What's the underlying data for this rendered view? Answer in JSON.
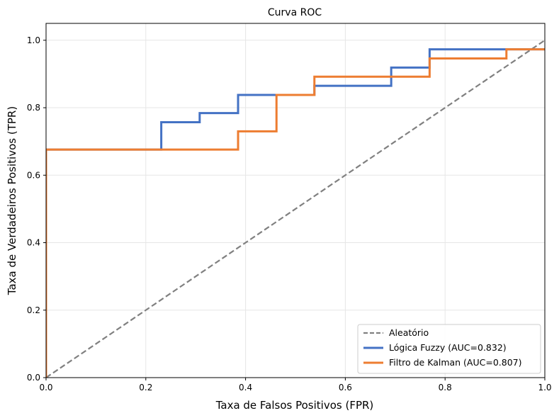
{
  "chart_data": {
    "type": "line",
    "title": "Curva ROC",
    "xlabel": "Taxa de Falsos Positivos (FPR)",
    "ylabel": "Taxa de Verdadeiros Positivos (TPR)",
    "xlim": [
      0,
      1
    ],
    "ylim": [
      0,
      1.05
    ],
    "xticks": [
      0,
      0.2,
      0.4,
      0.6,
      0.8,
      1.0
    ],
    "xtick_labels": [
      "0.0",
      "0.2",
      "0.4",
      "0.6",
      "0.8",
      "1.0"
    ],
    "yticks": [
      0,
      0.2,
      0.4,
      0.6,
      0.8,
      1.0
    ],
    "ytick_labels": [
      "0.0",
      "0.2",
      "0.4",
      "0.6",
      "0.8",
      "1.0"
    ],
    "grid": true,
    "legend_position": "bottom-right",
    "series": [
      {
        "name": "Aleatório",
        "style": "dashed",
        "color": "#808080",
        "x": [
          0,
          1
        ],
        "y": [
          0,
          1
        ]
      },
      {
        "name": "Lógica Fuzzy (AUC=0.832)",
        "style": "solid",
        "color": "#4472C4",
        "x": [
          0,
          0,
          0.231,
          0.231,
          0.308,
          0.308,
          0.385,
          0.385,
          0.538,
          0.538,
          0.692,
          0.692,
          0.769,
          0.769,
          1.0
        ],
        "y": [
          0,
          0.676,
          0.676,
          0.757,
          0.757,
          0.784,
          0.784,
          0.838,
          0.838,
          0.865,
          0.865,
          0.919,
          0.919,
          0.973,
          0.973
        ]
      },
      {
        "name": "Filtro de Kalman (AUC=0.807)",
        "style": "solid",
        "color": "#ED7D31",
        "x": [
          0,
          0,
          0.385,
          0.385,
          0.462,
          0.462,
          0.538,
          0.538,
          0.769,
          0.769,
          0.923,
          0.923,
          1.0
        ],
        "y": [
          0,
          0.676,
          0.676,
          0.73,
          0.73,
          0.838,
          0.838,
          0.892,
          0.892,
          0.946,
          0.946,
          0.973,
          0.973
        ]
      }
    ]
  }
}
